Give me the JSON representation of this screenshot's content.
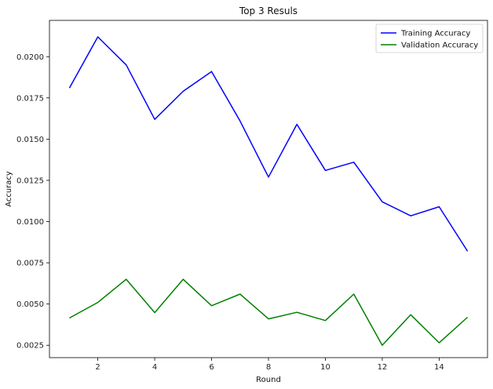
{
  "chart_data": {
    "type": "line",
    "title": "Top 3 Resuls",
    "xlabel": "Round",
    "ylabel": "Accuracy",
    "x": [
      1,
      2,
      3,
      4,
      5,
      6,
      7,
      8,
      9,
      10,
      11,
      12,
      13,
      14,
      15
    ],
    "xticks": [
      2,
      4,
      6,
      8,
      10,
      12,
      14
    ],
    "xtick_labels": [
      "2",
      "4",
      "6",
      "8",
      "10",
      "12",
      "14"
    ],
    "yticks": [
      0.0025,
      0.005,
      0.0075,
      0.01,
      0.0125,
      0.015,
      0.0175,
      0.02
    ],
    "ytick_labels": [
      "0.0025",
      "0.0050",
      "0.0075",
      "0.0100",
      "0.0125",
      "0.0150",
      "0.0175",
      "0.0200"
    ],
    "xlim": [
      0.3,
      15.7
    ],
    "ylim": [
      0.00175,
      0.0222
    ],
    "grid": false,
    "legend_position": "top-right",
    "series": [
      {
        "name": "Training Accuracy",
        "color": "#0000ff",
        "values": [
          0.0181,
          0.0212,
          0.0195,
          0.0162,
          0.0179,
          0.0191,
          0.0161,
          0.0127,
          0.0159,
          0.0131,
          0.0136,
          0.0112,
          0.01035,
          0.0109,
          0.0082
        ]
      },
      {
        "name": "Validation Accuracy",
        "color": "#008000",
        "values": [
          0.00415,
          0.0051,
          0.0065,
          0.00448,
          0.0065,
          0.0049,
          0.0056,
          0.0041,
          0.0045,
          0.004,
          0.0056,
          0.0025,
          0.00435,
          0.00265,
          0.0042
        ]
      }
    ]
  }
}
